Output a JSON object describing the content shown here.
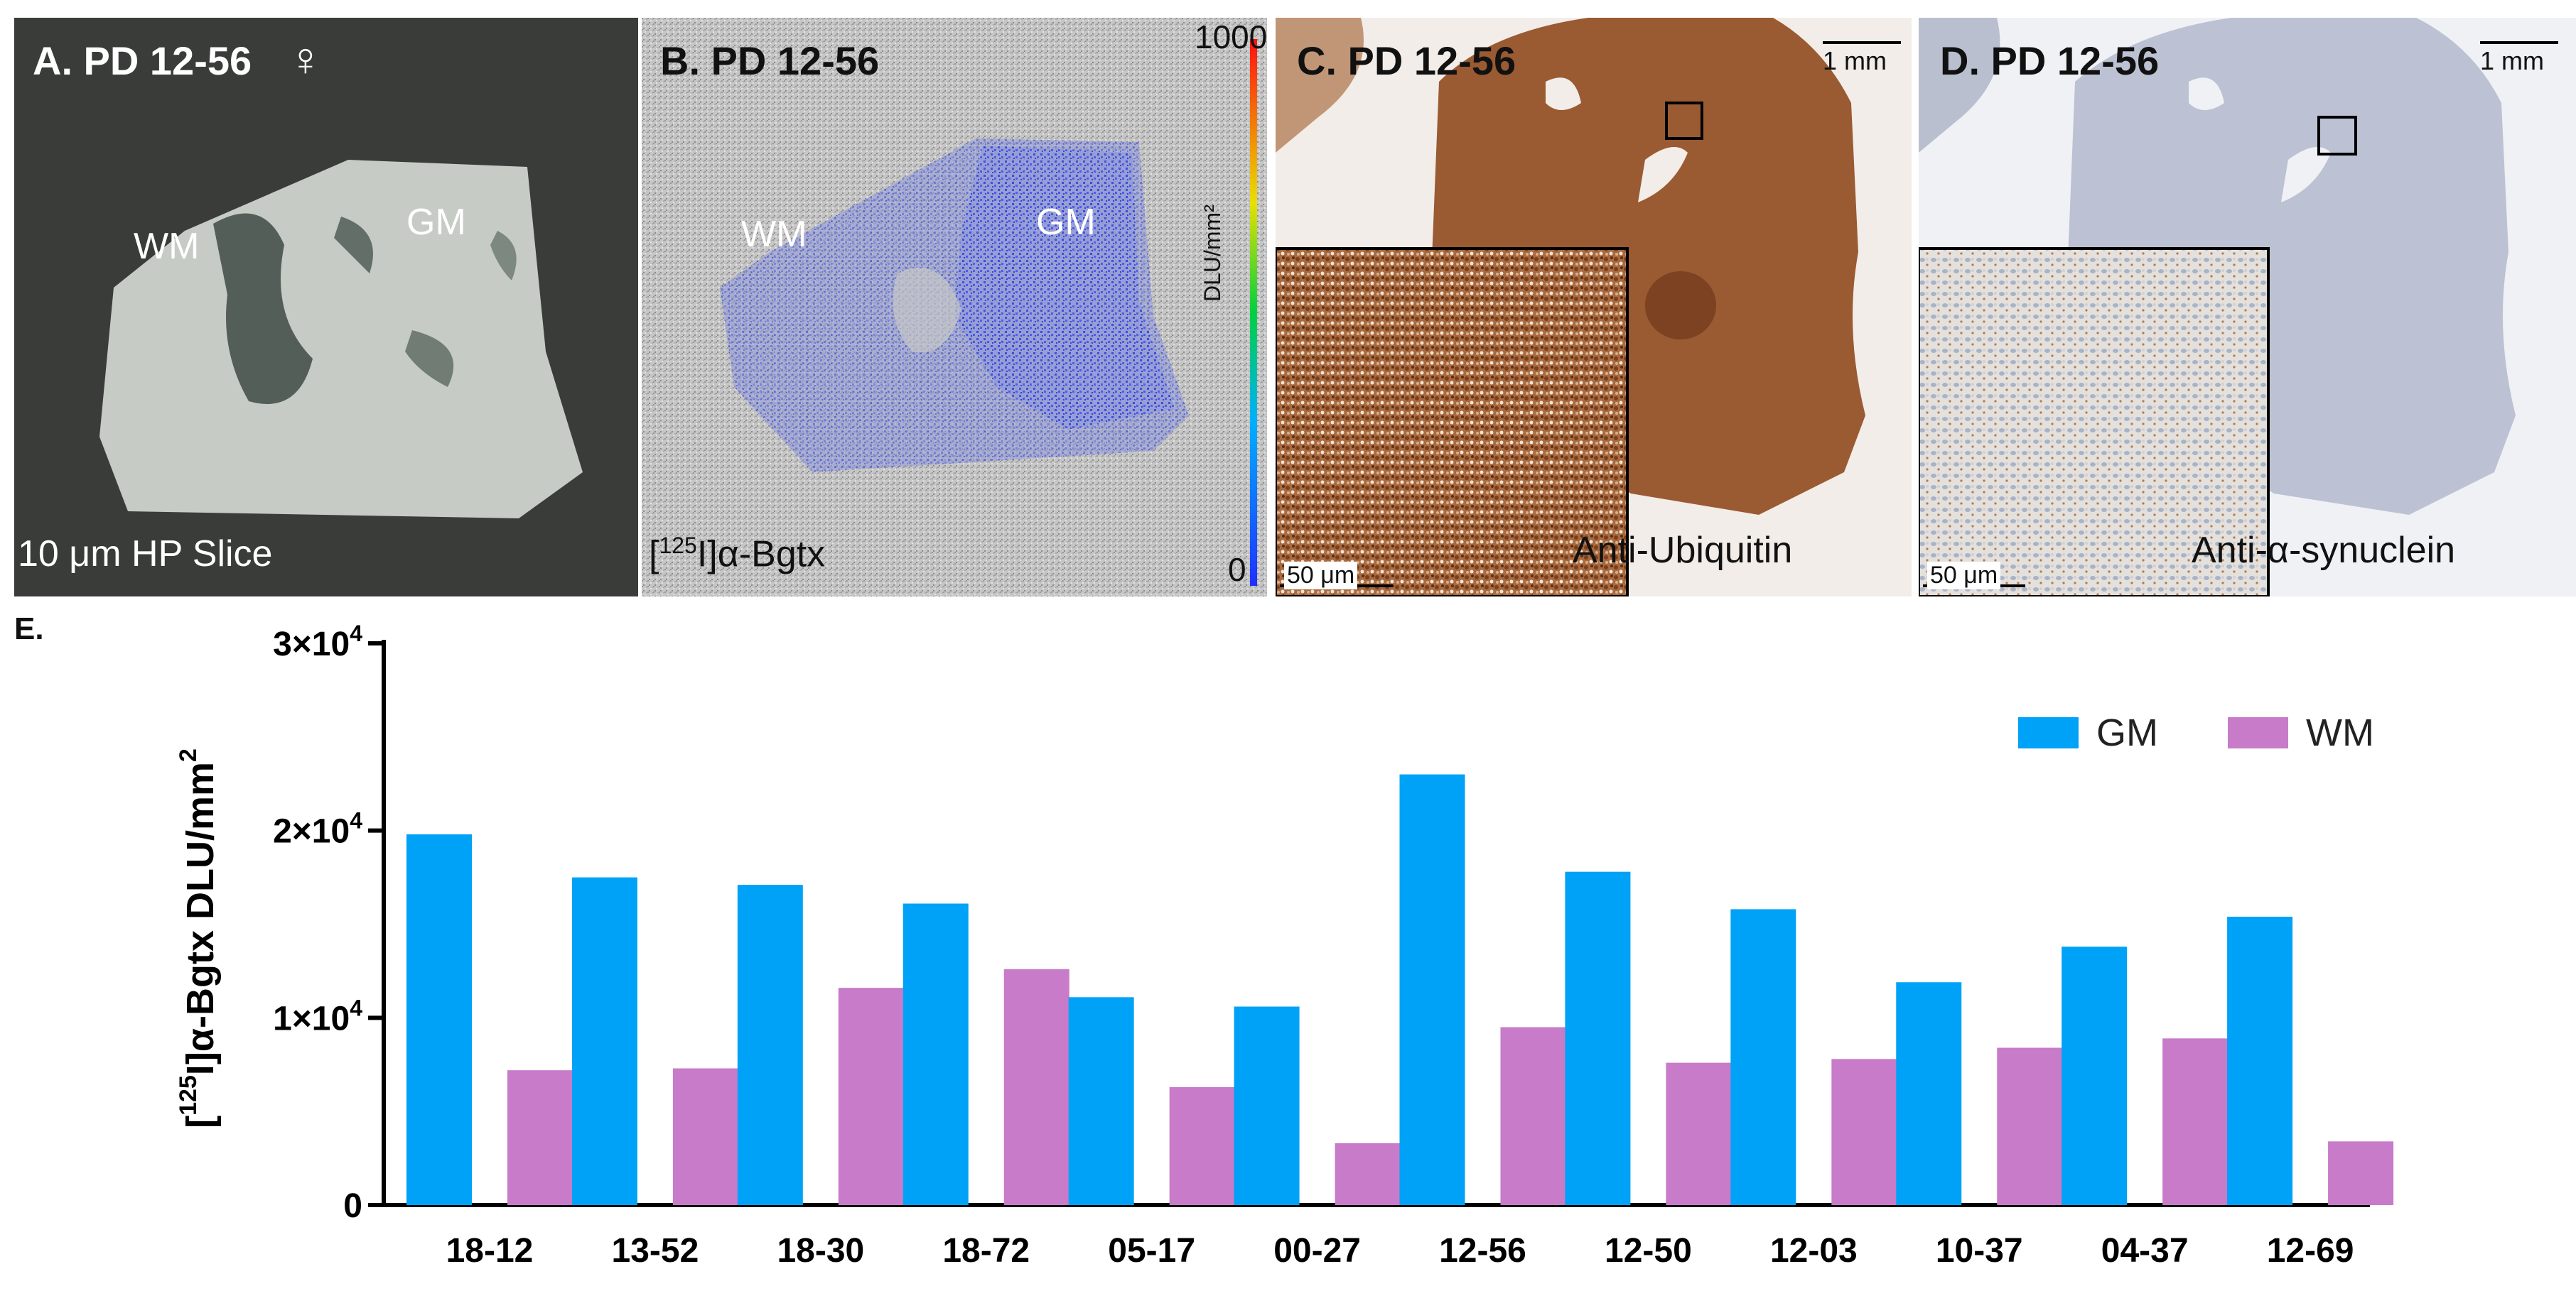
{
  "panels": {
    "a": {
      "title": "A. PD 12-56",
      "sex_symbol": "♀",
      "wm_label": "WM",
      "gm_label": "GM",
      "caption": "10 μm HP Slice"
    },
    "b": {
      "title": "B. PD 12-56",
      "wm_label": "WM",
      "gm_label": "GM",
      "caption_ligand": "α-Bgtx",
      "caption_sup": "125",
      "caption_elem": "I",
      "scale_max": "1000",
      "scale_min": "0",
      "scale_unit": "DLU/mm²"
    },
    "c": {
      "title": "C. PD 12-56",
      "scale_bar": "1 mm",
      "inset_scale": "50 μm",
      "stain": "Anti-Ubiquitin"
    },
    "d": {
      "title": "D. PD 12-56",
      "scale_bar": "1 mm",
      "inset_scale": "50 μm",
      "stain": "Anti-α-synuclein"
    }
  },
  "colors": {
    "gm": "#00A2F7",
    "wm": "#C77BC9",
    "brown": "#9A5A32",
    "blue_dots": "#2A3FE0"
  },
  "chart_data": {
    "type": "bar",
    "panel_label": "E.",
    "categories": [
      "18-12",
      "13-52",
      "18-30",
      "18-72",
      "05-17",
      "00-27",
      "12-56",
      "12-50",
      "12-03",
      "10-37",
      "04-37",
      "12-69"
    ],
    "series": [
      {
        "name": "GM",
        "values": [
          19800,
          17500,
          17100,
          16100,
          11100,
          10600,
          23000,
          17800,
          15800,
          11900,
          13800,
          15400
        ]
      },
      {
        "name": "WM",
        "values": [
          7200,
          7300,
          11600,
          12600,
          6300,
          3300,
          9500,
          7600,
          7800,
          8400,
          8900,
          3400
        ]
      }
    ],
    "ylim": [
      0,
      30000
    ],
    "yticks": [
      {
        "value": 0,
        "mant": "0",
        "exp": ""
      },
      {
        "value": 10000,
        "mant": "1×10",
        "exp": "4"
      },
      {
        "value": 20000,
        "mant": "2×10",
        "exp": "4"
      },
      {
        "value": 30000,
        "mant": "3×10",
        "exp": "4"
      }
    ],
    "ylabel": {
      "open": "[",
      "sup": "125",
      "rest": "I]α-Bgtx DLU/mm",
      "sup2": "2"
    },
    "xlabel": "",
    "legend_position": "top-right"
  }
}
